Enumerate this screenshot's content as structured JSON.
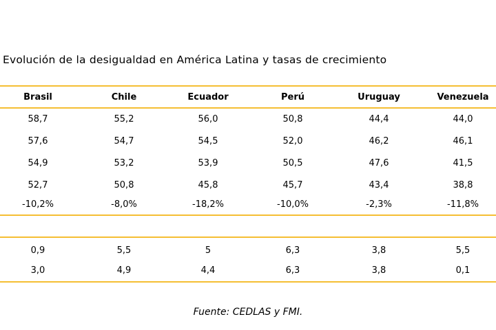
{
  "title": "Evolución de la desigualdad en América Latina y tasas de crecimiento",
  "columns": [
    "Brasil",
    "Chile",
    "Ecuador",
    "Perú",
    "Uruguay",
    "Venezuela"
  ],
  "rows_block1": [
    [
      "58,7",
      "55,2",
      "56,0",
      "50,8",
      "44,4",
      "44,0"
    ],
    [
      "57,6",
      "54,7",
      "54,5",
      "52,0",
      "46,2",
      "46,1"
    ],
    [
      "54,9",
      "53,2",
      "53,9",
      "50,5",
      "47,6",
      "41,5"
    ],
    [
      "52,7",
      "50,8",
      "45,8",
      "45,7",
      "43,4",
      "38,8"
    ],
    [
      "-10,2%",
      "-8,0%",
      "-18,2%",
      "-10,0%",
      "-2,3%",
      "-11,8%"
    ]
  ],
  "rows_block2": [
    [
      "0,9",
      "5,5",
      "5",
      "6,3",
      "3,8",
      "5,5"
    ],
    [
      "3,0",
      "4,9",
      "4,4",
      "6,3",
      "3,8",
      "0,1"
    ]
  ],
  "source": "Fuente: CEDLAS y FMI.",
  "colors": {
    "rule": "#f5be32"
  }
}
